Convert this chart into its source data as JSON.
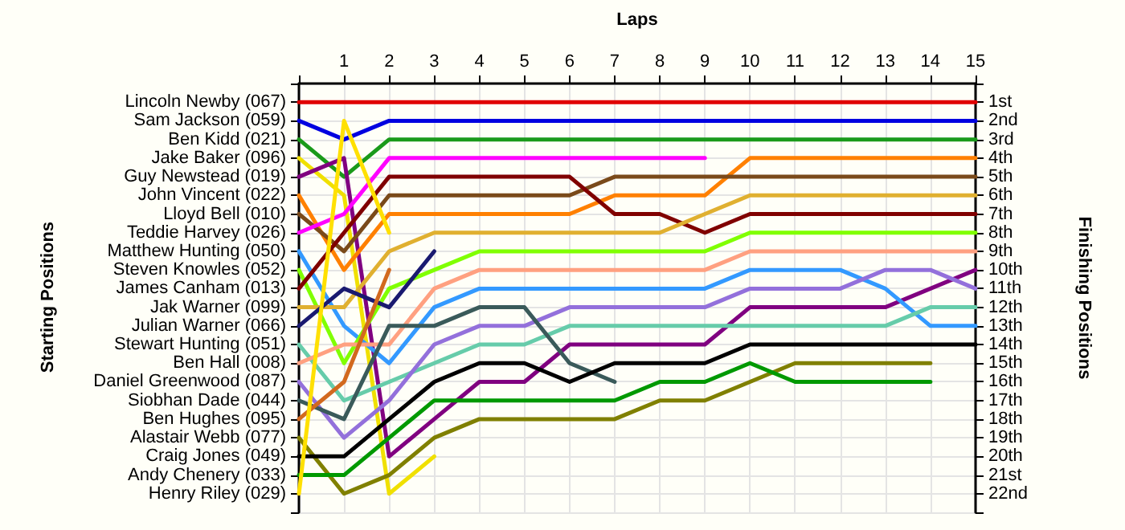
{
  "chart_data": {
    "type": "line",
    "xlabel": "Laps",
    "y2label": "Finishing Positions",
    "annotations": [
      "Starting Positions",
      "Lincoln Newby (067)",
      "Sam Jackson (059)",
      "Ben Kidd (021)",
      "Jake Baker (096)",
      "Guy Newstead (019)",
      "John Vincent (022)",
      "Lloyd Bell (010)",
      "Teddie Harvey (026)",
      "Matthew Hunting (050)",
      "Steven Knowles (052)",
      "James Canham (013)",
      "Jak Warner (099)",
      "Julian Warner (066)",
      "Stewart Hunting (051)",
      "Ben Hall (008)",
      "Daniel Greenwood (087)",
      "Siobhan Dade (044)",
      "Ben Hughes (095)",
      "Alastair Webb (077)",
      "Craig Jones (049)",
      "Andy Chenery (033)",
      "Henry Riley (029)"
    ],
    "x": [
      0,
      1,
      2,
      3,
      4,
      5,
      6,
      7,
      8,
      9,
      10,
      11,
      12,
      13,
      14,
      15
    ],
    "xlim": [
      0,
      15
    ],
    "xticks": [
      {
        "value": 0,
        "label": null
      },
      1,
      2,
      3,
      4,
      5,
      6,
      7,
      8,
      9,
      10,
      11,
      12,
      13,
      14,
      15
    ],
    "y2lim": [
      23,
      0
    ],
    "y2ticks": [
      {
        "value": 0,
        "label": null
      },
      {
        "value": 1,
        "label": "1st"
      },
      {
        "value": 2,
        "label": "2nd"
      },
      {
        "value": 3,
        "label": "3rd"
      },
      {
        "value": 4,
        "label": "4th"
      },
      {
        "value": 5,
        "label": "5th"
      },
      {
        "value": 6,
        "label": "6th"
      },
      {
        "value": 7,
        "label": "7th"
      },
      {
        "value": 8,
        "label": "8th"
      },
      {
        "value": 9,
        "label": "9th"
      },
      {
        "value": 10,
        "label": "10th"
      },
      {
        "value": 11,
        "label": "11th"
      },
      {
        "value": 12,
        "label": "12th"
      },
      {
        "value": 13,
        "label": "13th"
      },
      {
        "value": 14,
        "label": "14th"
      },
      {
        "value": 15,
        "label": "15th"
      },
      {
        "value": 16,
        "label": "16th"
      },
      {
        "value": 17,
        "label": "17th"
      },
      {
        "value": 18,
        "label": "18th"
      },
      {
        "value": 19,
        "label": "19th"
      },
      {
        "value": 20,
        "label": "20th"
      },
      {
        "value": 21,
        "label": "21st"
      },
      {
        "value": 22,
        "label": "22nd"
      },
      {
        "value": 23,
        "label": null
      }
    ],
    "grid": true,
    "marker": "none",
    "line_style": "solid",
    "series": [
      {
        "axis": "y2",
        "color": "#e00000",
        "values": [
          1,
          1,
          1,
          1,
          1,
          1,
          1,
          1,
          1,
          1,
          1,
          1,
          1,
          1,
          1,
          1
        ]
      },
      {
        "axis": "y2",
        "color": "#0000e0",
        "values": [
          2,
          3,
          2,
          2,
          2,
          2,
          2,
          2,
          2,
          2,
          2,
          2,
          2,
          2,
          2,
          2
        ]
      },
      {
        "axis": "y2",
        "color": "#1a9a1a",
        "values": [
          3,
          5,
          3,
          3,
          3,
          3,
          3,
          3,
          3,
          3,
          3,
          3,
          3,
          3,
          3,
          3
        ]
      },
      {
        "axis": "y2",
        "color": "#f0e000",
        "values": [
          4,
          6,
          22,
          20,
          null,
          null,
          null,
          null,
          null,
          null,
          null,
          null,
          null,
          null,
          null,
          null
        ]
      },
      {
        "axis": "y2",
        "color": "#800080",
        "values": [
          5,
          4,
          20,
          18,
          16,
          16,
          14,
          14,
          14,
          14,
          12,
          12,
          12,
          12,
          11,
          10
        ]
      },
      {
        "axis": "y2",
        "color": "#ff8000",
        "values": [
          6,
          10,
          7,
          7,
          7,
          7,
          7,
          6,
          6,
          6,
          4,
          4,
          4,
          4,
          4,
          4
        ]
      },
      {
        "axis": "y2",
        "color": "#7a4a1a",
        "values": [
          7,
          9,
          6,
          6,
          6,
          6,
          6,
          5,
          5,
          5,
          5,
          5,
          5,
          5,
          5,
          5
        ]
      },
      {
        "axis": "y2",
        "color": "#ff00ff",
        "values": [
          8,
          7,
          4,
          4,
          4,
          4,
          4,
          4,
          4,
          4,
          null,
          null,
          null,
          null,
          null,
          null
        ]
      },
      {
        "axis": "y2",
        "color": "#3399ff",
        "values": [
          9,
          13,
          15,
          12,
          11,
          11,
          11,
          11,
          11,
          11,
          10,
          10,
          10,
          11,
          13,
          13
        ]
      },
      {
        "axis": "y2",
        "color": "#80ff00",
        "values": [
          10,
          15,
          11,
          10,
          9,
          9,
          9,
          9,
          9,
          9,
          8,
          8,
          8,
          8,
          8,
          8
        ]
      },
      {
        "axis": "y2",
        "color": "#800000",
        "values": [
          11,
          8,
          5,
          5,
          5,
          5,
          5,
          7,
          7,
          8,
          7,
          7,
          7,
          7,
          7,
          7
        ]
      },
      {
        "axis": "y2",
        "color": "#e0b030",
        "values": [
          12,
          12,
          9,
          8,
          8,
          8,
          8,
          8,
          8,
          7,
          6,
          6,
          6,
          6,
          6,
          6
        ]
      },
      {
        "axis": "y2",
        "color": "#1a1a70",
        "values": [
          13,
          11,
          12,
          9,
          null,
          null,
          null,
          null,
          null,
          null,
          null,
          null,
          null,
          null,
          null,
          null
        ]
      },
      {
        "axis": "y2",
        "color": "#66ccaa",
        "values": [
          14,
          17,
          16,
          15,
          14,
          14,
          13,
          13,
          13,
          13,
          13,
          13,
          13,
          13,
          12,
          12
        ]
      },
      {
        "axis": "y2",
        "color": "#ffa080",
        "values": [
          15,
          14,
          14,
          11,
          10,
          10,
          10,
          10,
          10,
          10,
          9,
          9,
          9,
          9,
          9,
          9
        ]
      },
      {
        "axis": "y2",
        "color": "#9370db",
        "values": [
          16,
          19,
          17,
          14,
          13,
          13,
          12,
          12,
          12,
          12,
          11,
          11,
          11,
          10,
          10,
          11
        ]
      },
      {
        "axis": "y2",
        "color": "#3a5a5a",
        "values": [
          17,
          18,
          13,
          13,
          12,
          12,
          15,
          16,
          null,
          null,
          null,
          null,
          null,
          null,
          null,
          null
        ]
      },
      {
        "axis": "y2",
        "color": "#d2691e",
        "values": [
          18,
          16,
          10,
          null,
          null,
          null,
          null,
          null,
          null,
          null,
          null,
          null,
          null,
          null,
          null,
          null
        ]
      },
      {
        "axis": "y2",
        "color": "#808000",
        "values": [
          19,
          22,
          21,
          19,
          18,
          18,
          18,
          18,
          17,
          17,
          16,
          15,
          15,
          15,
          15,
          null
        ]
      },
      {
        "axis": "y2",
        "color": "#000000",
        "values": [
          20,
          20,
          18,
          16,
          15,
          15,
          16,
          15,
          15,
          15,
          14,
          14,
          14,
          14,
          14,
          14
        ]
      },
      {
        "axis": "y2",
        "color": "#009900",
        "values": [
          21,
          21,
          19,
          17,
          17,
          17,
          17,
          17,
          16,
          16,
          15,
          16,
          16,
          16,
          16,
          null
        ]
      },
      {
        "axis": "y2",
        "color": "#ffe000",
        "values": [
          22,
          2,
          8,
          null,
          null,
          null,
          null,
          null,
          null,
          null,
          null,
          null,
          null,
          null,
          null,
          null
        ]
      }
    ]
  }
}
